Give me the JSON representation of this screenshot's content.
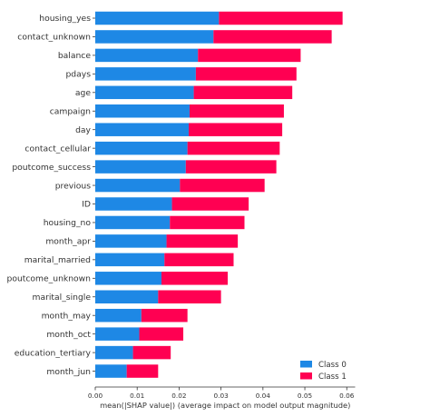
{
  "chart_data": {
    "type": "bar",
    "orientation": "horizontal",
    "stacked": true,
    "title": "",
    "xlabel": "mean(|SHAP value|) (average impact on model output magnitude)",
    "ylabel": "",
    "xlim": [
      0,
      0.062
    ],
    "xticks": [
      "0.00",
      "0.01",
      "0.02",
      "0.03",
      "0.04",
      "0.05",
      "0.06"
    ],
    "grid": false,
    "legend_position": "lower-right",
    "categories": [
      "housing_yes",
      "contact_unknown",
      "balance",
      "pdays",
      "age",
      "campaign",
      "day",
      "contact_cellular",
      "poutcome_success",
      "previous",
      "ID",
      "housing_no",
      "month_apr",
      "marital_married",
      "poutcome_unknown",
      "marital_single",
      "month_may",
      "month_oct",
      "education_tertiary",
      "month_jun"
    ],
    "series": [
      {
        "name": "Class 0",
        "color": "#1e88e5",
        "values": [
          0.0295,
          0.0282,
          0.0245,
          0.024,
          0.0235,
          0.0225,
          0.0223,
          0.022,
          0.0216,
          0.0202,
          0.0183,
          0.0178,
          0.017,
          0.0165,
          0.0158,
          0.015,
          0.011,
          0.0105,
          0.009,
          0.0075
        ]
      },
      {
        "name": "Class 1",
        "color": "#ff0052",
        "values": [
          0.0295,
          0.0282,
          0.0245,
          0.024,
          0.0235,
          0.0225,
          0.0223,
          0.022,
          0.0216,
          0.0202,
          0.0183,
          0.0178,
          0.017,
          0.0165,
          0.0158,
          0.015,
          0.011,
          0.0105,
          0.009,
          0.0075
        ]
      }
    ]
  }
}
